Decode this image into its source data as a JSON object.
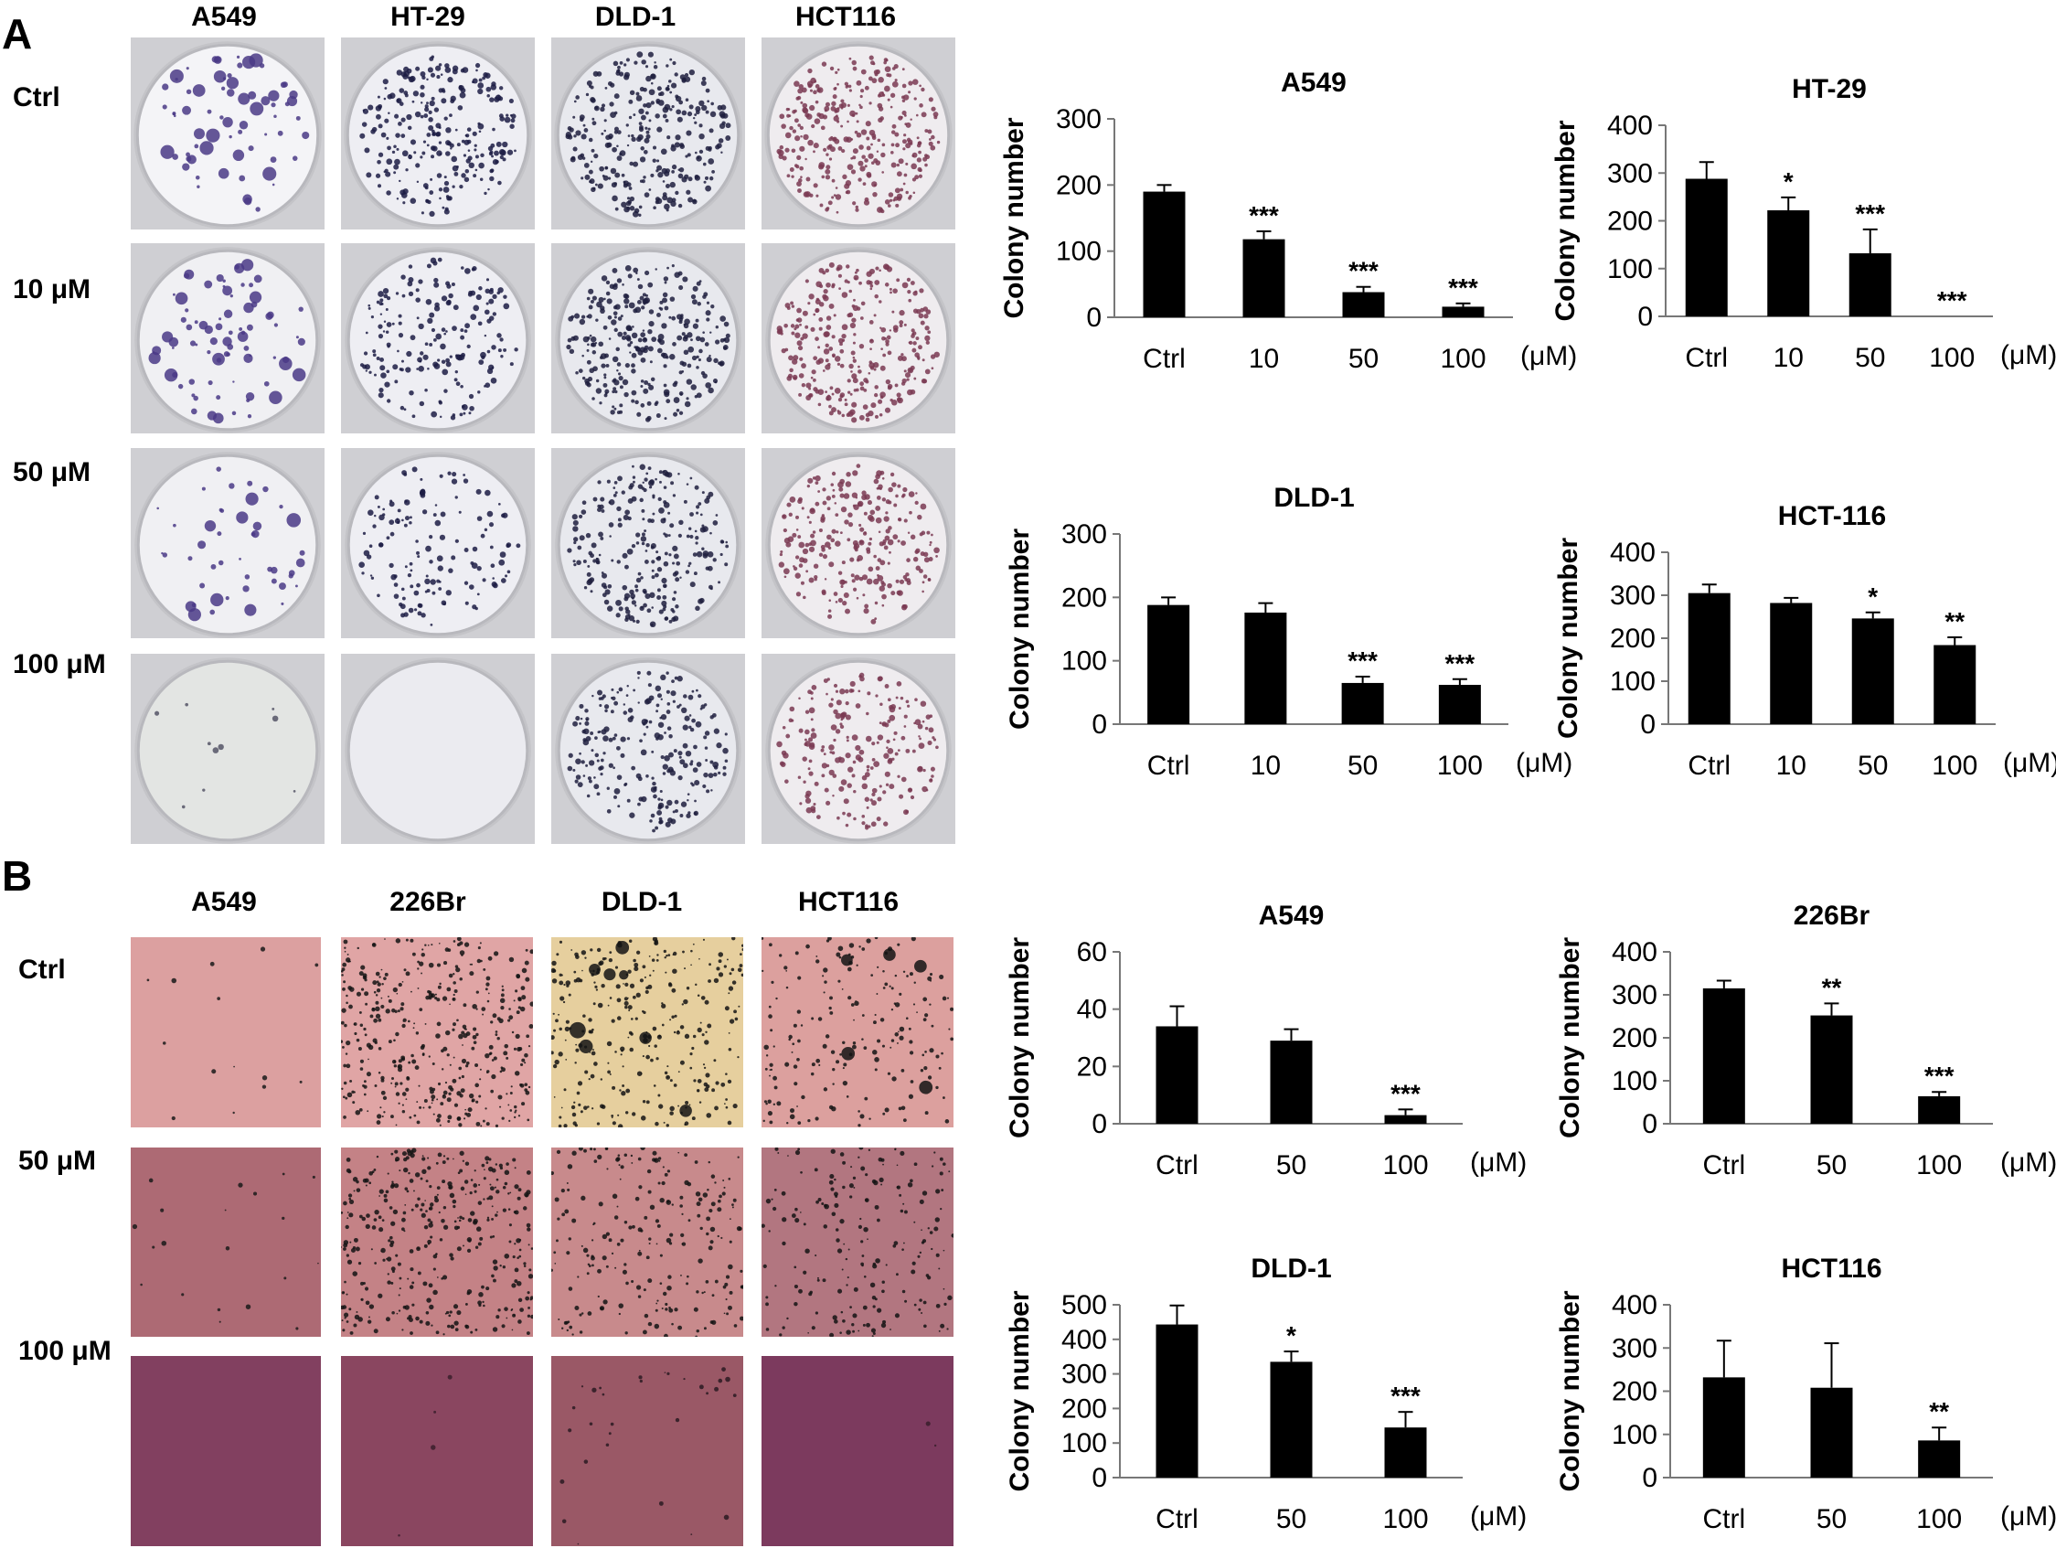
{
  "figure": {
    "panel_a": {
      "letter": "A",
      "columns": [
        "A549",
        "HT-29",
        "DLD-1",
        "HCT116"
      ],
      "rows": [
        "Ctrl",
        "10 μM",
        "50 μM",
        "100 μM"
      ]
    },
    "panel_b": {
      "letter": "B",
      "columns": [
        "A549",
        "226Br",
        "DLD-1",
        "HCT116"
      ],
      "rows": [
        "Ctrl",
        "50 μM",
        "100 μM"
      ]
    }
  },
  "chart_data": [
    {
      "type": "bar",
      "title": "A549",
      "ylabel": "Colony number",
      "unit": "(μM)",
      "categories": [
        "Ctrl",
        "10",
        "50",
        "100"
      ],
      "values": [
        190,
        118,
        38,
        16
      ],
      "errors": [
        10,
        12,
        8,
        5
      ],
      "significance": [
        "",
        "***",
        "***",
        "***"
      ],
      "ylim": [
        0,
        300
      ],
      "yticks": [
        0,
        100,
        200,
        300
      ],
      "grid": false
    },
    {
      "type": "bar",
      "title": "HT-29",
      "ylabel": "Colony number",
      "unit": "(μM)",
      "categories": [
        "Ctrl",
        "10",
        "50",
        "100"
      ],
      "values": [
        288,
        222,
        132,
        0
      ],
      "errors": [
        35,
        27,
        50,
        0
      ],
      "significance": [
        "",
        "*",
        "***",
        "***"
      ],
      "ylim": [
        0,
        400
      ],
      "yticks": [
        0,
        100,
        200,
        300,
        400
      ],
      "grid": false
    },
    {
      "type": "bar",
      "title": "DLD-1",
      "ylabel": "Colony number",
      "unit": "(μM)",
      "categories": [
        "Ctrl",
        "10",
        "50",
        "100"
      ],
      "values": [
        188,
        176,
        65,
        62
      ],
      "errors": [
        12,
        15,
        10,
        9
      ],
      "significance": [
        "",
        "",
        "***",
        "***"
      ],
      "ylim": [
        0,
        300
      ],
      "yticks": [
        0,
        100,
        200,
        300
      ],
      "grid": false
    },
    {
      "type": "bar",
      "title": "HCT-116",
      "ylabel": "Colony number",
      "unit": "(μM)",
      "categories": [
        "Ctrl",
        "10",
        "50",
        "100"
      ],
      "values": [
        305,
        282,
        246,
        184
      ],
      "errors": [
        20,
        12,
        14,
        18
      ],
      "significance": [
        "",
        "",
        "*",
        "**"
      ],
      "ylim": [
        0,
        400
      ],
      "yticks": [
        0,
        100,
        200,
        300,
        400
      ],
      "grid": false
    },
    {
      "type": "bar",
      "title": "A549",
      "ylabel": "Colony number",
      "unit": "(μM)",
      "categories": [
        "Ctrl",
        "50",
        "100"
      ],
      "values": [
        34,
        29,
        3
      ],
      "errors": [
        7,
        4,
        2
      ],
      "significance": [
        "",
        "",
        "***"
      ],
      "ylim": [
        0,
        60
      ],
      "yticks": [
        0,
        20,
        40,
        60
      ],
      "grid": false
    },
    {
      "type": "bar",
      "title": "226Br",
      "ylabel": "Colony number",
      "unit": "(μM)",
      "categories": [
        "Ctrl",
        "50",
        "100"
      ],
      "values": [
        315,
        252,
        64
      ],
      "errors": [
        18,
        28,
        10
      ],
      "significance": [
        "",
        "**",
        "***"
      ],
      "ylim": [
        0,
        400
      ],
      "yticks": [
        0,
        100,
        200,
        300,
        400
      ],
      "grid": false
    },
    {
      "type": "bar",
      "title": "DLD-1",
      "ylabel": "Colony number",
      "unit": "(μM)",
      "categories": [
        "Ctrl",
        "50",
        "100"
      ],
      "values": [
        443,
        335,
        145
      ],
      "errors": [
        55,
        30,
        45
      ],
      "significance": [
        "",
        "*",
        "***"
      ],
      "ylim": [
        0,
        500
      ],
      "yticks": [
        0,
        100,
        200,
        300,
        400,
        500
      ],
      "grid": false
    },
    {
      "type": "bar",
      "title": "HCT116",
      "ylabel": "Colony number",
      "unit": "(μM)",
      "categories": [
        "Ctrl",
        "50",
        "100"
      ],
      "values": [
        232,
        208,
        86
      ],
      "errors": [
        85,
        103,
        30
      ],
      "significance": [
        "",
        "",
        "**"
      ],
      "ylim": [
        0,
        400
      ],
      "yticks": [
        0,
        100,
        200,
        300,
        400
      ],
      "grid": false
    }
  ]
}
